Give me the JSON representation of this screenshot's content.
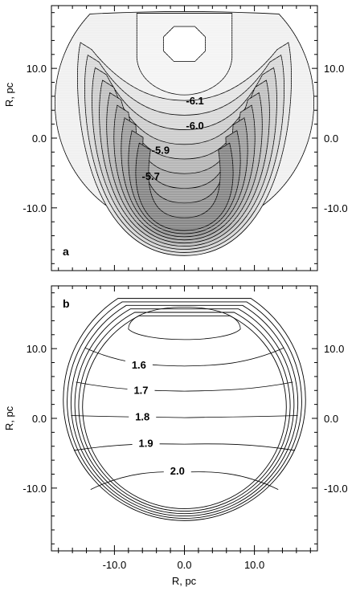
{
  "chart_data": [
    {
      "type": "contour",
      "panel_label": "a",
      "xlim": [
        -19,
        19
      ],
      "ylim": [
        -19,
        19
      ],
      "y_ticks": [
        10.0,
        0.0,
        -10.0
      ],
      "y_tick_labels": [
        "10.0",
        "0.0",
        "-10.0"
      ],
      "ylabel": "R, pc",
      "contour_labels": [
        {
          "text": "-6.1",
          "x": 1.5,
          "y": 5.3
        },
        {
          "text": "-6.0",
          "x": 1.5,
          "y": 1.7
        },
        {
          "text": "-5.9",
          "x": -3.4,
          "y": -1.8
        },
        {
          "text": "-5.7",
          "x": -4.8,
          "y": -5.5
        }
      ],
      "fill_gradient": {
        "light": "#f0f0f0",
        "dark": "#707070"
      }
    },
    {
      "type": "contour",
      "panel_label": "b",
      "xlim": [
        -19,
        19
      ],
      "ylim": [
        -19,
        19
      ],
      "x_ticks": [
        -10.0,
        0.0,
        10.0
      ],
      "x_tick_labels": [
        "-10.0",
        "0.0",
        "10.0"
      ],
      "y_ticks": [
        10.0,
        0.0,
        -10.0
      ],
      "y_tick_labels": [
        "10.0",
        "0.0",
        "-10.0"
      ],
      "xlabel": "R, pc",
      "ylabel": "R, pc",
      "contour_labels": [
        {
          "text": "1.6",
          "x": -6.5,
          "y": 7.6
        },
        {
          "text": "1.7",
          "x": -6.2,
          "y": 4.0
        },
        {
          "text": "1.8",
          "x": -6.0,
          "y": 0.2
        },
        {
          "text": "1.9",
          "x": -5.5,
          "y": -3.6
        },
        {
          "text": "2.0",
          "x": -1.0,
          "y": -7.6
        }
      ]
    }
  ]
}
